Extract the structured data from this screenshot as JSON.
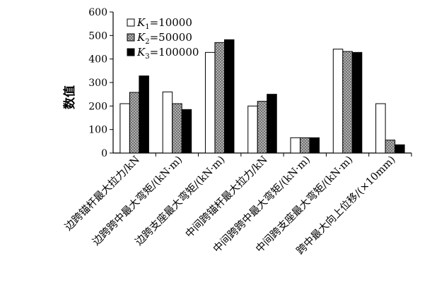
{
  "chart_data": {
    "type": "bar",
    "title": "",
    "xlabel": "",
    "ylabel": "数值",
    "ylim": [
      0,
      600
    ],
    "yticks": [
      0,
      100,
      200,
      300,
      400,
      500,
      600
    ],
    "grid": false,
    "legend_position": "top-left",
    "categories": [
      "边跨锚杆最大拉力/kN",
      "边跨跨中最大弯矩/(kN·m)",
      "边跨支座最大弯矩/(kN·m)",
      "中间跨锚杆最大拉力/kN",
      "中间跨跨中最大弯矩/(kN·m)",
      "中间跨支座最大弯矩/(kN·m)",
      "跨中最大向上位移/(×10mm)"
    ],
    "series": [
      {
        "name": "K1=10000",
        "label_main": "K",
        "label_sub": "1",
        "label_rest": "=10000",
        "fill": "#ffffff",
        "pattern": "solid",
        "values": [
          210,
          260,
          428,
          200,
          65,
          442,
          210
        ]
      },
      {
        "name": "K2=50000",
        "label_main": "K",
        "label_sub": "2",
        "label_rest": "=50000",
        "fill": "#a0a0a0",
        "pattern": "crosshatch",
        "values": [
          258,
          210,
          470,
          220,
          65,
          432,
          55
        ]
      },
      {
        "name": "K3=100000",
        "label_main": "K",
        "label_sub": "3",
        "label_rest": "=100000",
        "fill": "#000000",
        "pattern": "solid",
        "values": [
          328,
          185,
          482,
          250,
          65,
          428,
          35
        ]
      }
    ]
  }
}
